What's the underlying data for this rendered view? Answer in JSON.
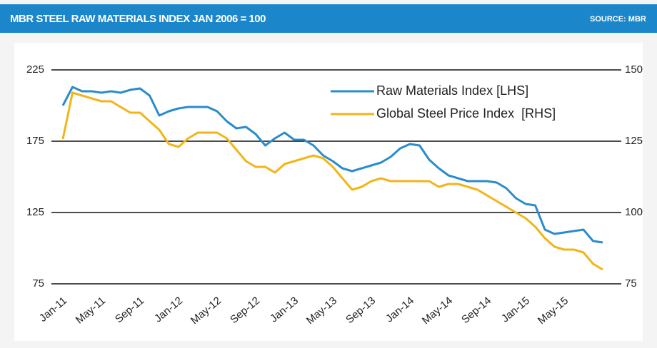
{
  "chart_data": {
    "type": "line",
    "title": "MBR STEEL RAW MATERIALS INDEX JAN 2006 = 100",
    "source": "SOURCE: MBR",
    "categories": [
      "Jan-11",
      null,
      null,
      null,
      "May-11",
      null,
      null,
      null,
      "Sep-11",
      null,
      null,
      null,
      "Jan-12",
      null,
      null,
      null,
      "May-12",
      null,
      null,
      null,
      "Sep-12",
      null,
      null,
      null,
      "Jan-13",
      null,
      null,
      null,
      "May-13",
      null,
      null,
      null,
      "Sep-13",
      null,
      null,
      null,
      "Jan-14",
      null,
      null,
      null,
      "May-14",
      null,
      null,
      null,
      "Sep-14",
      null,
      null,
      null,
      "Jan-15",
      null,
      null,
      null,
      "May-15",
      null,
      null,
      null,
      null
    ],
    "series": [
      {
        "name": "Raw Materials Index [LHS]",
        "color": "#2a8ccb",
        "axis": "y",
        "values": [
          200,
          213,
          210,
          210,
          209,
          210,
          209,
          211,
          212,
          207,
          193,
          196,
          198,
          199,
          199,
          199,
          196,
          189,
          184,
          185,
          180,
          172,
          177,
          181,
          176,
          176,
          172,
          165,
          161,
          156,
          154,
          156,
          158,
          160,
          164,
          170,
          173,
          172,
          162,
          156,
          151,
          149,
          147,
          147,
          147,
          146,
          142,
          135,
          131,
          130,
          113,
          110,
          111,
          112,
          113,
          105,
          104
        ]
      },
      {
        "name": "Global Steel Price Index  [RHS]",
        "color": "#f2b519",
        "axis": "y2",
        "values": [
          125.75,
          142,
          141,
          140,
          139,
          139,
          137,
          135,
          135,
          132,
          129,
          124,
          123,
          126,
          128,
          128,
          128,
          126,
          122,
          118,
          116,
          116,
          114,
          117,
          118,
          119,
          120,
          119,
          116,
          112,
          108,
          109,
          111,
          112,
          111,
          111,
          111,
          111,
          111,
          109,
          110,
          110,
          109,
          108,
          106,
          104,
          102,
          100,
          98,
          95,
          91,
          88,
          87,
          87,
          86,
          82,
          80
        ]
      }
    ],
    "ylim": [
      75,
      225
    ],
    "yticks": [
      75,
      125,
      175,
      225
    ],
    "y2lim": [
      75,
      150
    ],
    "y2ticks": [
      75,
      100,
      125,
      150
    ],
    "grid": true
  }
}
